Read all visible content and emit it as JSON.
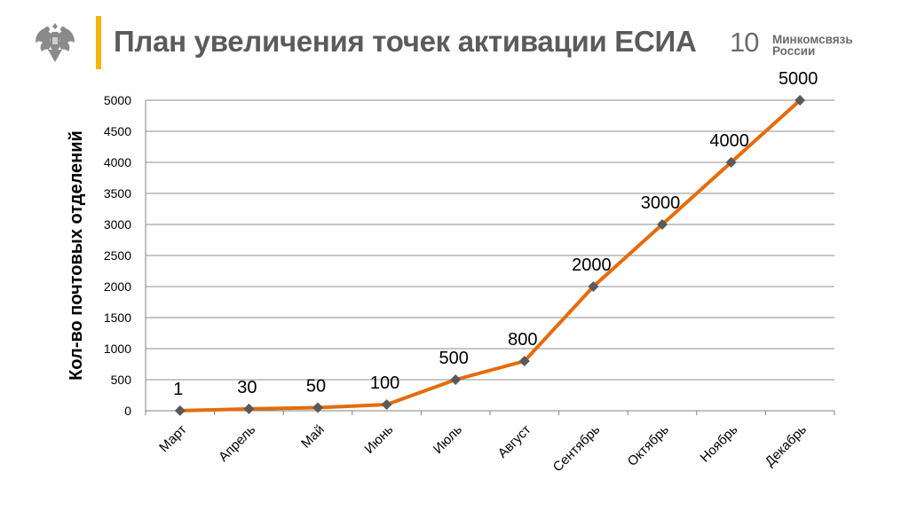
{
  "header": {
    "title": "План увеличения точек активации ЕСИА",
    "slide_number": "10",
    "ministry_line1": "Минкомсвязь",
    "ministry_line2": "России",
    "accent_color": "#f2b705",
    "emblem_icon": "russian-eagle-emblem-icon"
  },
  "chart_data": {
    "type": "line",
    "categories": [
      "Март",
      "Апрель",
      "Май",
      "Июнь",
      "Июль",
      "Август",
      "Сентябрь",
      "Октябрь",
      "Ноябрь",
      "Декабрь"
    ],
    "series": [
      {
        "values": [
          1,
          30,
          50,
          100,
          500,
          800,
          2000,
          3000,
          4000,
          5000
        ],
        "color": "#e46c0a",
        "marker": "diamond",
        "marker_color": "#595959",
        "data_labels": [
          "1",
          "30",
          "50",
          "100",
          "500",
          "800",
          "2000",
          "3000",
          "4000",
          "5000"
        ]
      }
    ],
    "ylabel": "Кол-во почтовых отделений",
    "xlabel": "",
    "ylim": [
      0,
      5000
    ],
    "yticks": [
      0,
      500,
      1000,
      1500,
      2000,
      2500,
      3000,
      3500,
      4000,
      4500,
      5000
    ],
    "grid": true,
    "legend": "none"
  }
}
